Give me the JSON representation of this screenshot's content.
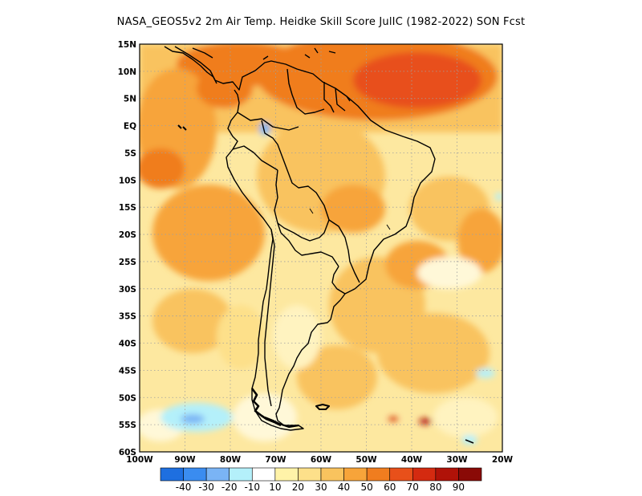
{
  "title": "NASA_GEOS5v2  2m Air Temp. Heidke Skill Score JulIC (1982-2022) SON Fcst",
  "map": {
    "lat_labels": [
      "15N",
      "10N",
      "5N",
      "EQ",
      "5S",
      "10S",
      "15S",
      "20S",
      "25S",
      "30S",
      "35S",
      "40S",
      "45S",
      "50S",
      "55S",
      "60S"
    ],
    "lon_labels": [
      "100W",
      "90W",
      "80W",
      "70W",
      "60W",
      "50W",
      "40W",
      "30W",
      "20W"
    ],
    "lat_range": [
      -60,
      15
    ],
    "lon_range": [
      -100,
      -20
    ],
    "grid": "dotted"
  },
  "colorbar": {
    "labels": [
      "-40",
      "-30",
      "-20",
      "-10",
      "10",
      "20",
      "30",
      "40",
      "50",
      "60",
      "70",
      "80",
      "90"
    ],
    "colors": [
      "#1e6fe0",
      "#3a8cf0",
      "#7ab4f5",
      "#b4f0fa",
      "#ffffff",
      "#fff3a8",
      "#fde08a",
      "#f9c35e",
      "#f7a43a",
      "#f07d1f",
      "#e8501a",
      "#d42a10",
      "#b01208",
      "#8a0a06"
    ]
  }
}
